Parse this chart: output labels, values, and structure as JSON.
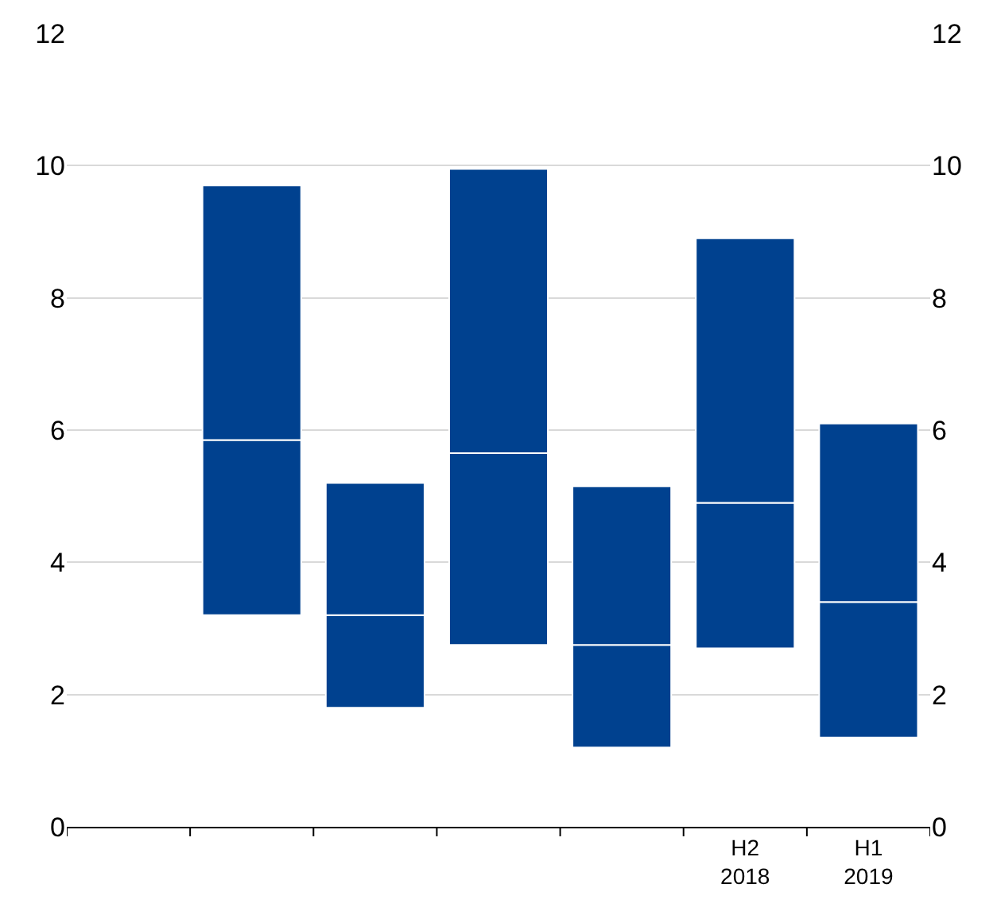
{
  "chart_data": {
    "type": "bar",
    "categories": [
      null,
      null,
      null,
      null,
      null,
      "H2\n2018",
      "H1\n2019"
    ],
    "series": [
      {
        "color": "#00418f",
        "base": [
          null,
          3.2,
          1.8,
          2.75,
          1.2,
          2.7,
          1.35
        ],
        "values": [
          null,
          2.65,
          1.4,
          2.9,
          1.55,
          2.2,
          2.05
        ]
      },
      {
        "color": "#00418f",
        "base": [
          null,
          5.85,
          3.2,
          5.65,
          2.75,
          4.9,
          3.4
        ],
        "values": [
          null,
          3.85,
          2.0,
          4.3,
          2.4,
          4.0,
          2.7
        ]
      }
    ],
    "ylim": [
      0,
      12
    ],
    "yticks": [
      0,
      2,
      4,
      6,
      8,
      10,
      12
    ],
    "y2lim": [
      0,
      12
    ],
    "y2ticks": [
      0,
      2,
      4,
      6,
      8,
      10,
      12
    ],
    "grid": "y"
  }
}
